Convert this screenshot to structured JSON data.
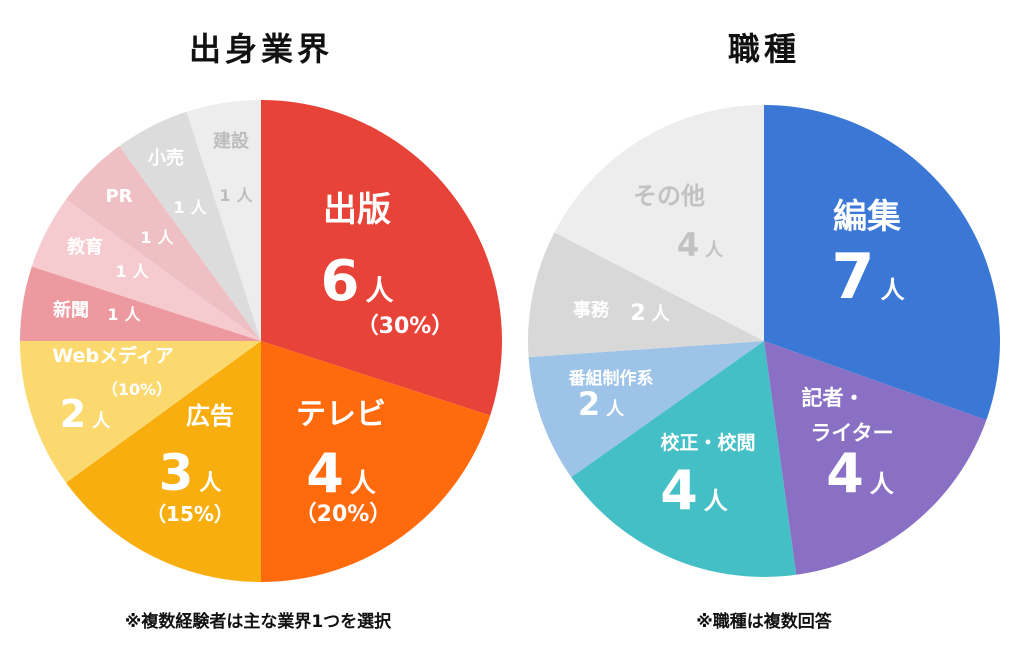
{
  "chart_data": [
    {
      "type": "pie",
      "title": "出身業界",
      "note": "※複数経験者は主な業界1つを選択",
      "unit": "人",
      "slices": [
        {
          "name": "出版",
          "value": 6,
          "value_label": "6",
          "unit_label": "人",
          "percent_label": "（30%）",
          "color": "#E84339",
          "text_color": "#FFFFFF"
        },
        {
          "name": "テレビ",
          "value": 4,
          "value_label": "4",
          "unit_label": "人",
          "percent_label": "（20%）",
          "color": "#FF6A0D",
          "text_color": "#FFFFFF"
        },
        {
          "name": "広告",
          "value": 3,
          "value_label": "3",
          "unit_label": "人",
          "percent_label": "（15%）",
          "color": "#F9AE0F",
          "text_color": "#FFFFFF"
        },
        {
          "name": "Webメディア",
          "value": 2,
          "value_label": "2",
          "unit_label": "人",
          "percent_label": "（10%）",
          "color": "#FCD96E",
          "text_color": "#FFFFFF"
        },
        {
          "name": "新聞",
          "value": 1,
          "value_label": "1",
          "unit_label": "人",
          "percent_label": "",
          "color": "#EC9AA0",
          "text_color": "#FFFFFF"
        },
        {
          "name": "教育",
          "value": 1,
          "value_label": "1",
          "unit_label": "人",
          "percent_label": "",
          "color": "#F6CBD0",
          "text_color": "#FFFFFF"
        },
        {
          "name": "PR",
          "value": 1,
          "value_label": "1",
          "unit_label": "人",
          "percent_label": "",
          "color": "#EEC0C3",
          "text_color": "#FFFFFF"
        },
        {
          "name": "小売",
          "value": 1,
          "value_label": "1",
          "unit_label": "人",
          "percent_label": "",
          "color": "#DCDCDC",
          "text_color": "#FFFFFF"
        },
        {
          "name": "建設",
          "value": 1,
          "value_label": "1",
          "unit_label": "人",
          "percent_label": "",
          "color": "#EDEDED",
          "text_color": "#BDBDBD"
        }
      ]
    },
    {
      "type": "pie",
      "title": "職種",
      "note": "※職種は複数回答",
      "unit": "人",
      "slices": [
        {
          "name": "編集",
          "value": 7,
          "value_label": "7",
          "unit_label": "人",
          "percent_label": "",
          "color": "#3B78D6",
          "text_color": "#FFFFFF"
        },
        {
          "name": "記者・ライター",
          "value": 4,
          "value_label": "4",
          "unit_label": "人",
          "percent_label": "",
          "color": "#8A70C4",
          "text_color": "#FFFFFF"
        },
        {
          "name": "校正・校閲",
          "value": 4,
          "value_label": "4",
          "unit_label": "人",
          "percent_label": "",
          "color": "#45BFC6",
          "text_color": "#FFFFFF"
        },
        {
          "name": "番組制作系",
          "value": 2,
          "value_label": "2",
          "unit_label": "人",
          "percent_label": "",
          "color": "#9EC3E8",
          "text_color": "#FFFFFF"
        },
        {
          "name": "事務",
          "value": 2,
          "value_label": "2",
          "unit_label": "人",
          "percent_label": "",
          "color": "#D8D8D8",
          "text_color": "#FFFFFF"
        },
        {
          "name": "その他",
          "value": 4,
          "value_label": "4",
          "unit_label": "人",
          "percent_label": "",
          "color": "#EDEDED",
          "text_color": "#C2C2C2"
        }
      ]
    }
  ]
}
